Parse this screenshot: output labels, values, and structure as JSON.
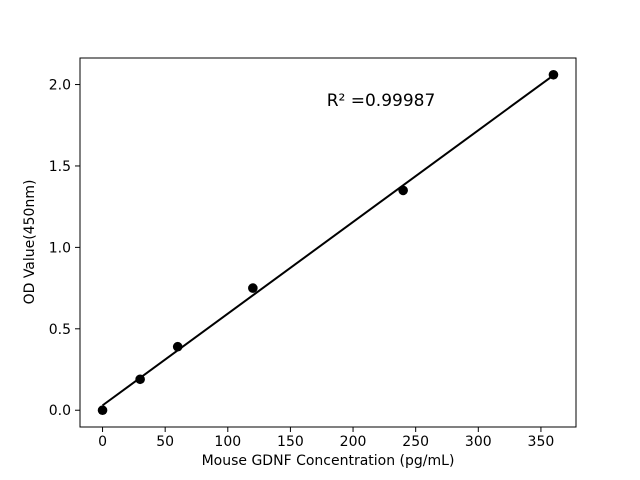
{
  "chart_data": {
    "type": "scatter",
    "title": "",
    "xlabel": "Mouse GDNF Concentration (pg/mL)",
    "ylabel": "OD Value(450nm)",
    "annotation": "R² =0.99987",
    "x": [
      0,
      30,
      60,
      120,
      240,
      360
    ],
    "y": [
      0.0,
      0.19,
      0.39,
      0.75,
      1.35,
      2.06
    ],
    "fit_line": true,
    "xlim": [
      -18,
      378
    ],
    "ylim": [
      -0.103,
      2.163
    ],
    "x_tick_values": [
      0,
      50,
      100,
      150,
      200,
      250,
      300,
      350
    ],
    "x_tick_labels": [
      "0",
      "50",
      "100",
      "150",
      "200",
      "250",
      "300",
      "350"
    ],
    "y_tick_values": [
      0.0,
      0.5,
      1.0,
      1.5,
      2.0
    ],
    "y_tick_labels": [
      "0.0",
      "0.5",
      "1.0",
      "1.5",
      "2.0"
    ],
    "grid": false,
    "legend": "none",
    "marker_color": "#000000",
    "line_color": "#000000",
    "text_color": "#000000",
    "background_color": "#ffffff"
  }
}
